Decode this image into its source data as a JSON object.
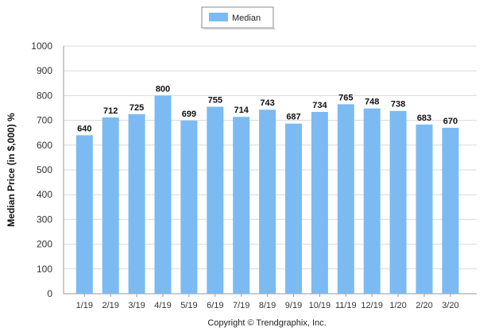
{
  "chart_data": {
    "type": "bar",
    "categories": [
      "1/19",
      "2/19",
      "3/19",
      "4/19",
      "5/19",
      "6/19",
      "7/19",
      "8/19",
      "9/19",
      "10/19",
      "11/19",
      "12/19",
      "1/20",
      "2/20",
      "3/20"
    ],
    "series": [
      {
        "name": "Median",
        "values": [
          640,
          712,
          725,
          800,
          699,
          755,
          714,
          743,
          687,
          734,
          765,
          748,
          738,
          683,
          670
        ]
      }
    ],
    "ylabel": "Median Price (in $,000) %",
    "xlabel": "Copyright © Trendgraphix, Inc.",
    "ylim": [
      0,
      1000
    ],
    "yticks": [
      0,
      100,
      200,
      300,
      400,
      500,
      600,
      700,
      800,
      900,
      1000
    ],
    "grid": true,
    "legend_position": "top-center",
    "data_labels": true,
    "colors": {
      "bar": "#7bbbf2",
      "grid": "#d9d9d9",
      "axis": "#999999"
    }
  }
}
